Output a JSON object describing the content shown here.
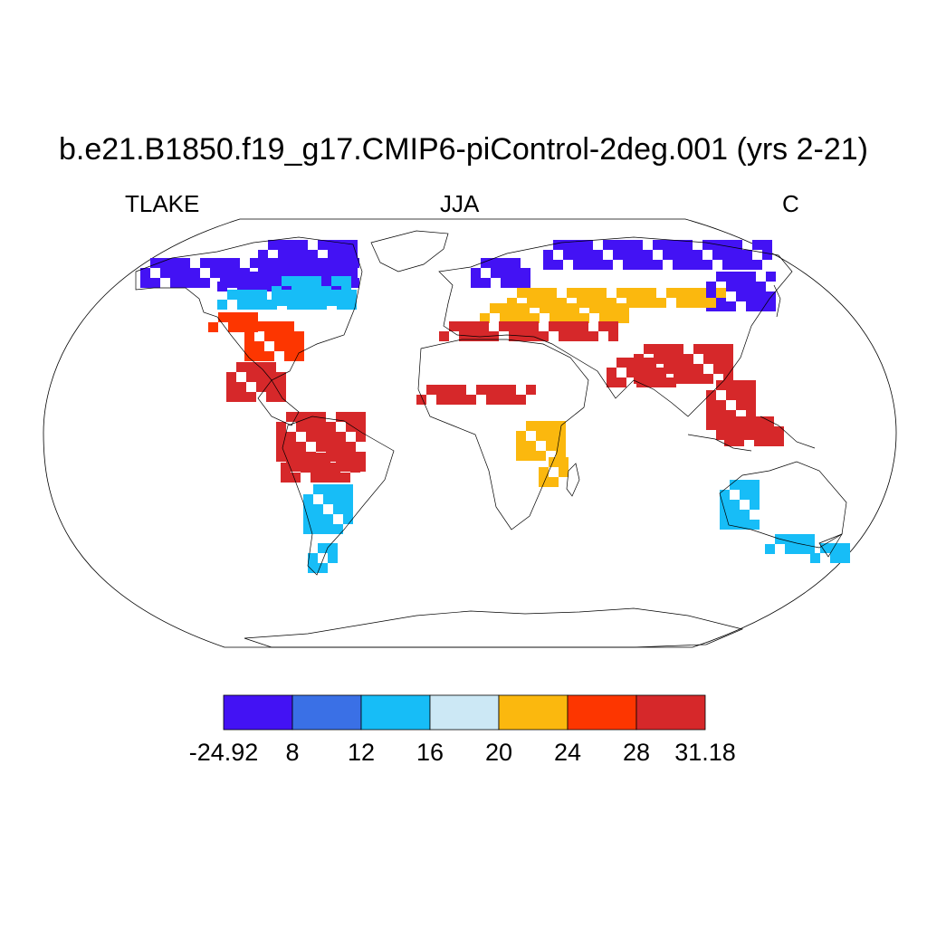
{
  "title": "b.e21.B1850.f19_g17.CMIP6-piControl-2deg.001 (yrs 2-21)",
  "subtitle_left": "TLAKE",
  "subtitle_center": "JJA",
  "subtitle_right": "C",
  "colorbar": {
    "labels": [
      "-24.92",
      "8",
      "12",
      "16",
      "20",
      "24",
      "28",
      "31.18"
    ],
    "colors": [
      "#4312f4",
      "#3a70e6",
      "#17bdf7",
      "#cce8f5",
      "#fbb80e",
      "#fd3600",
      "#d6282a"
    ]
  },
  "map_regions": [
    {
      "name": "north-america-high-latitude",
      "color_class": 0
    },
    {
      "name": "north-america-mid-latitude",
      "color_class": 2
    },
    {
      "name": "eastern-united-states",
      "color_class": 5
    },
    {
      "name": "amazon-basin",
      "color_class": 6
    },
    {
      "name": "southern-south-america",
      "color_class": 2
    },
    {
      "name": "siberia",
      "color_class": 0
    },
    {
      "name": "central-asia",
      "color_class": 4
    },
    {
      "name": "mediterranean",
      "color_class": 6
    },
    {
      "name": "east-africa",
      "color_class": 4
    },
    {
      "name": "india-southeast-asia",
      "color_class": 6
    },
    {
      "name": "australia",
      "color_class": 2
    }
  ]
}
